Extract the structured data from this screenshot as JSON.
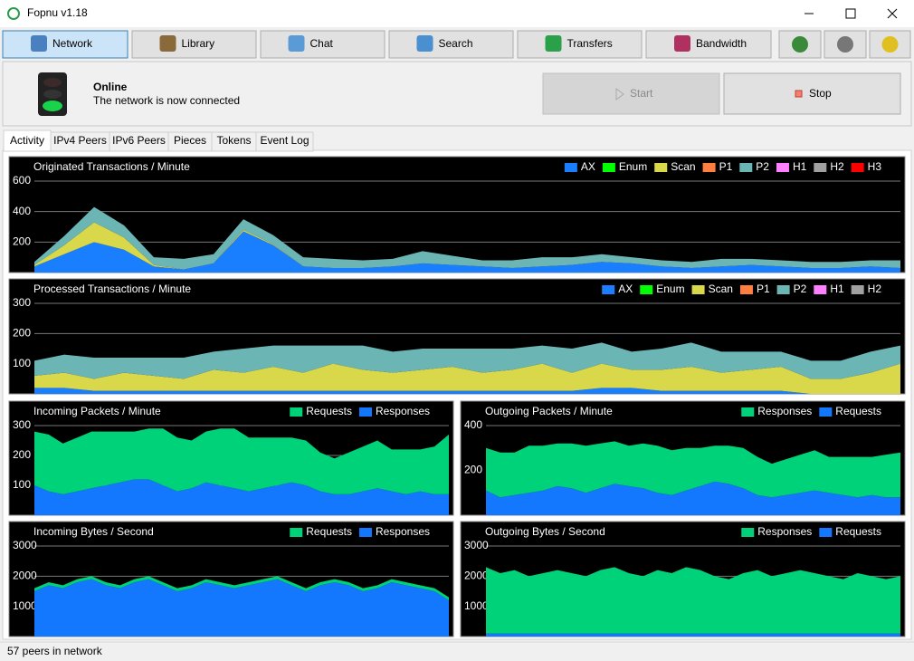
{
  "window": {
    "title": "Fopnu v1.18"
  },
  "toolbar": [
    "Network",
    "Library",
    "Chat",
    "Search",
    "Transfers",
    "Bandwidth"
  ],
  "status": {
    "title": "Online",
    "message": "The network is now connected"
  },
  "buttons": {
    "start": "Start",
    "stop": "Stop"
  },
  "tabs": [
    "Activity",
    "IPv4 Peers",
    "IPv6 Peers",
    "Pieces",
    "Tokens",
    "Event Log"
  ],
  "statusbar": "57 peers in network",
  "chart_data": [
    {
      "type": "area",
      "title": "Originated Transactions / Minute",
      "ylim": [
        0,
        600
      ],
      "yticks": [
        200,
        400,
        600
      ],
      "series": [
        {
          "name": "AX",
          "color": "#1a7fff",
          "values": [
            40,
            120,
            200,
            150,
            40,
            20,
            60,
            270,
            180,
            40,
            30,
            30,
            40,
            60,
            50,
            40,
            30,
            40,
            50,
            70,
            60,
            40,
            30,
            40,
            50,
            40,
            30,
            30,
            40,
            30
          ]
        },
        {
          "name": "Enum",
          "color": "#00ff00",
          "values": [
            0,
            0,
            0,
            0,
            0,
            0,
            0,
            0,
            0,
            0,
            0,
            0,
            0,
            0,
            0,
            0,
            0,
            0,
            0,
            0,
            0,
            0,
            0,
            0,
            0,
            0,
            0,
            0,
            0,
            0
          ]
        },
        {
          "name": "Scan",
          "color": "#d8d84a",
          "values": [
            10,
            60,
            130,
            80,
            10,
            0,
            0,
            10,
            5,
            0,
            0,
            0,
            0,
            0,
            0,
            0,
            0,
            0,
            0,
            0,
            0,
            0,
            0,
            0,
            0,
            0,
            0,
            0,
            0,
            0
          ]
        },
        {
          "name": "P1",
          "color": "#ff7f40",
          "values": [
            0,
            0,
            0,
            0,
            0,
            0,
            0,
            0,
            0,
            0,
            0,
            0,
            0,
            0,
            0,
            0,
            0,
            0,
            0,
            0,
            0,
            0,
            0,
            0,
            0,
            0,
            0,
            0,
            0,
            0
          ]
        },
        {
          "name": "P2",
          "color": "#6bb5b5",
          "values": [
            20,
            60,
            100,
            80,
            50,
            70,
            60,
            70,
            60,
            60,
            60,
            50,
            50,
            80,
            60,
            40,
            50,
            60,
            50,
            50,
            40,
            40,
            40,
            50,
            40,
            40,
            40,
            40,
            40,
            50
          ]
        },
        {
          "name": "H1",
          "color": "#ff80ff",
          "values": [
            0,
            0,
            0,
            0,
            0,
            0,
            0,
            0,
            0,
            0,
            0,
            0,
            0,
            0,
            0,
            0,
            0,
            0,
            0,
            0,
            0,
            0,
            0,
            0,
            0,
            0,
            0,
            0,
            0,
            0
          ]
        },
        {
          "name": "H2",
          "color": "#a0a0a0",
          "values": [
            0,
            0,
            0,
            0,
            0,
            0,
            0,
            0,
            0,
            0,
            0,
            0,
            0,
            0,
            0,
            0,
            0,
            0,
            0,
            0,
            0,
            0,
            0,
            0,
            0,
            0,
            0,
            0,
            0,
            0
          ]
        },
        {
          "name": "H3",
          "color": "#ff0000",
          "values": [
            0,
            0,
            0,
            0,
            0,
            0,
            0,
            0,
            0,
            0,
            0,
            0,
            0,
            0,
            0,
            0,
            0,
            0,
            0,
            0,
            0,
            0,
            0,
            0,
            0,
            0,
            0,
            0,
            0,
            0
          ]
        }
      ]
    },
    {
      "type": "area",
      "title": "Processed Transactions / Minute",
      "ylim": [
        0,
        300
      ],
      "yticks": [
        100,
        200,
        300
      ],
      "series": [
        {
          "name": "AX",
          "color": "#1a7fff",
          "values": [
            20,
            20,
            10,
            10,
            10,
            10,
            10,
            10,
            10,
            10,
            10,
            10,
            10,
            10,
            10,
            10,
            10,
            10,
            10,
            20,
            20,
            10,
            10,
            10,
            10,
            10,
            0,
            0,
            0,
            0
          ]
        },
        {
          "name": "Enum",
          "color": "#00ff00",
          "values": [
            0,
            0,
            0,
            0,
            0,
            0,
            0,
            0,
            0,
            0,
            0,
            0,
            0,
            0,
            0,
            0,
            0,
            0,
            0,
            0,
            0,
            0,
            0,
            0,
            0,
            0,
            0,
            0,
            0,
            0
          ]
        },
        {
          "name": "Scan",
          "color": "#d8d84a",
          "values": [
            40,
            50,
            40,
            60,
            50,
            40,
            70,
            60,
            80,
            60,
            90,
            70,
            60,
            70,
            80,
            60,
            70,
            90,
            60,
            80,
            60,
            70,
            80,
            60,
            70,
            80,
            50,
            50,
            70,
            100
          ]
        },
        {
          "name": "P1",
          "color": "#ff7f40",
          "values": [
            0,
            0,
            0,
            0,
            0,
            0,
            0,
            0,
            0,
            0,
            0,
            0,
            0,
            0,
            0,
            0,
            0,
            0,
            0,
            0,
            0,
            0,
            0,
            0,
            0,
            0,
            0,
            0,
            0,
            0
          ]
        },
        {
          "name": "P2",
          "color": "#6bb5b5",
          "values": [
            50,
            60,
            70,
            50,
            60,
            70,
            60,
            80,
            70,
            90,
            60,
            80,
            70,
            70,
            60,
            80,
            70,
            60,
            80,
            70,
            60,
            70,
            80,
            70,
            60,
            50,
            60,
            60,
            70,
            60
          ]
        },
        {
          "name": "H1",
          "color": "#ff80ff",
          "values": [
            0,
            0,
            0,
            0,
            0,
            0,
            0,
            0,
            0,
            0,
            0,
            0,
            0,
            0,
            0,
            0,
            0,
            0,
            0,
            0,
            0,
            0,
            0,
            0,
            0,
            0,
            0,
            0,
            0,
            0
          ]
        },
        {
          "name": "H2",
          "color": "#a0a0a0",
          "values": [
            0,
            0,
            0,
            0,
            0,
            0,
            0,
            0,
            0,
            0,
            0,
            0,
            0,
            0,
            0,
            0,
            0,
            0,
            0,
            0,
            0,
            0,
            0,
            0,
            0,
            0,
            0,
            0,
            0,
            0
          ]
        }
      ]
    },
    {
      "type": "area",
      "title": "Incoming Packets / Minute",
      "ylim": [
        0,
        300
      ],
      "yticks": [
        100,
        200,
        300
      ],
      "series": [
        {
          "name": "Requests",
          "color": "#00d27a",
          "values": [
            180,
            190,
            170,
            180,
            190,
            180,
            170,
            160,
            170,
            190,
            180,
            160,
            170,
            190,
            200,
            180,
            170,
            160,
            150,
            150,
            130,
            120,
            140,
            150,
            160,
            140,
            150,
            140,
            160,
            200
          ]
        },
        {
          "name": "Responses",
          "color": "#1478ff",
          "values": [
            100,
            80,
            70,
            80,
            90,
            100,
            110,
            120,
            120,
            100,
            80,
            90,
            110,
            100,
            90,
            80,
            90,
            100,
            110,
            100,
            80,
            70,
            70,
            80,
            90,
            80,
            70,
            80,
            70,
            70
          ]
        }
      ]
    },
    {
      "type": "area",
      "title": "Outgoing Packets / Minute",
      "ylim": [
        0,
        400
      ],
      "yticks": [
        200,
        400
      ],
      "series": [
        {
          "name": "Responses",
          "color": "#00d27a",
          "values": [
            190,
            200,
            190,
            210,
            200,
            190,
            200,
            210,
            200,
            190,
            180,
            200,
            210,
            200,
            190,
            170,
            160,
            170,
            180,
            170,
            150,
            160,
            170,
            180,
            160,
            170,
            180,
            170,
            190,
            200
          ]
        },
        {
          "name": "Requests",
          "color": "#1478ff",
          "values": [
            110,
            80,
            90,
            100,
            110,
            130,
            120,
            100,
            120,
            140,
            130,
            120,
            100,
            90,
            110,
            130,
            150,
            140,
            120,
            90,
            80,
            90,
            100,
            110,
            100,
            90,
            80,
            90,
            80,
            80
          ]
        }
      ]
    },
    {
      "type": "area",
      "title": "Incoming Bytes / Second",
      "ylim": [
        0,
        3000
      ],
      "yticks": [
        1000,
        2000,
        3000
      ],
      "series": [
        {
          "name": "Requests",
          "color": "#00d27a",
          "values": [
            100,
            100,
            100,
            100,
            100,
            100,
            100,
            100,
            100,
            100,
            100,
            100,
            100,
            100,
            100,
            100,
            100,
            100,
            100,
            100,
            100,
            100,
            100,
            100,
            100,
            100,
            100,
            100,
            100,
            100
          ]
        },
        {
          "name": "Responses",
          "color": "#1478ff",
          "values": [
            1500,
            1700,
            1600,
            1800,
            1900,
            1700,
            1600,
            1800,
            1900,
            1700,
            1500,
            1600,
            1800,
            1700,
            1600,
            1700,
            1800,
            1900,
            1700,
            1500,
            1700,
            1800,
            1700,
            1500,
            1600,
            1800,
            1700,
            1600,
            1500,
            1200
          ]
        }
      ]
    },
    {
      "type": "area",
      "title": "Outgoing Bytes / Second",
      "ylim": [
        0,
        3000
      ],
      "yticks": [
        1000,
        2000,
        3000
      ],
      "series": [
        {
          "name": "Responses",
          "color": "#00d27a",
          "values": [
            2200,
            2000,
            2100,
            1900,
            2000,
            2100,
            2000,
            1900,
            2100,
            2200,
            2000,
            1900,
            2100,
            2000,
            2200,
            2100,
            1900,
            1800,
            2000,
            2100,
            1900,
            2000,
            2100,
            2000,
            1900,
            1800,
            2000,
            1900,
            1800,
            1900
          ]
        },
        {
          "name": "Requests",
          "color": "#1478ff",
          "values": [
            100,
            100,
            100,
            100,
            100,
            100,
            100,
            100,
            100,
            100,
            100,
            100,
            100,
            100,
            100,
            100,
            100,
            100,
            100,
            100,
            100,
            100,
            100,
            100,
            100,
            100,
            100,
            100,
            100,
            100
          ]
        }
      ]
    }
  ]
}
